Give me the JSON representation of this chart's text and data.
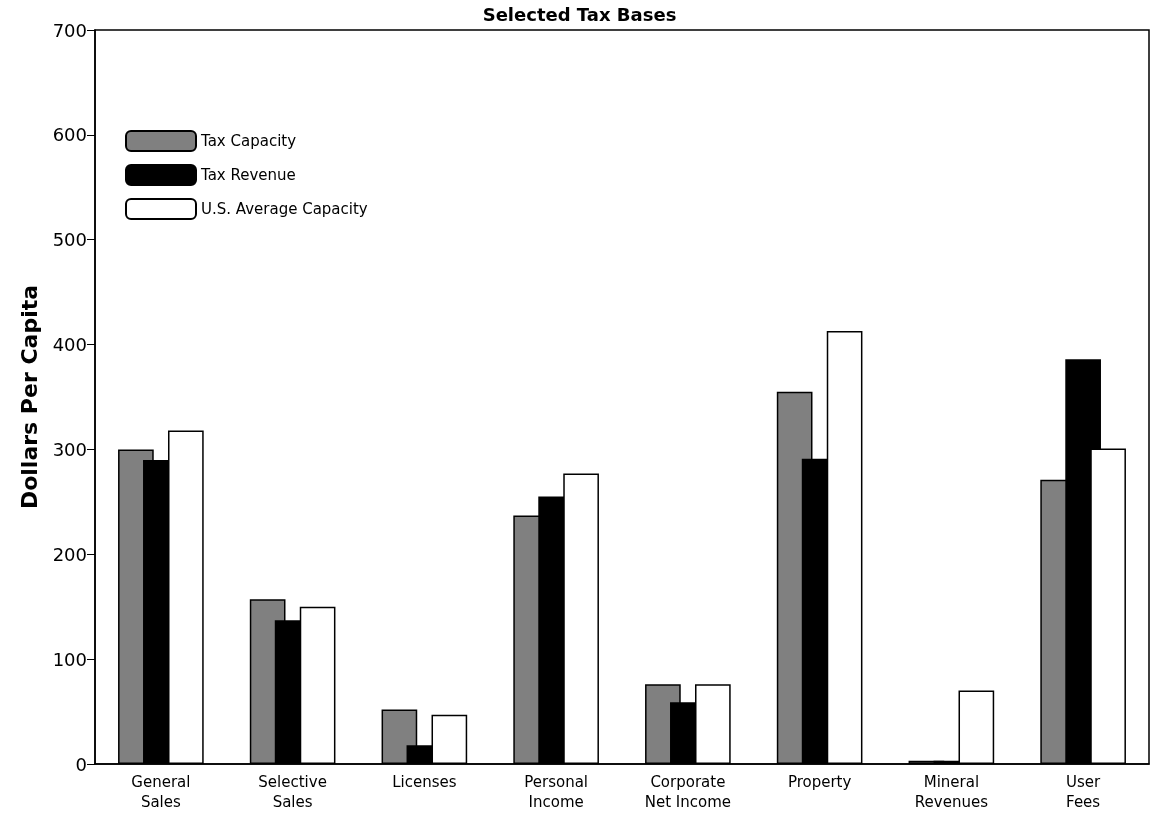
{
  "chart_data": {
    "type": "bar",
    "title": "Selected Tax Bases",
    "ylabel": "Dollars Per Capita",
    "categories": [
      "General\nSales",
      "Selective\nSales",
      "Licenses",
      "Personal\nIncome",
      "Corporate\nNet Income",
      "Property",
      "Mineral\nRevenues",
      "User\nFees"
    ],
    "series": [
      {
        "name": "Tax Capacity",
        "color": "#808080",
        "values": [
          300,
          157,
          52,
          237,
          76,
          355,
          3,
          271
        ]
      },
      {
        "name": "Tax Revenue",
        "color": "#000000",
        "values": [
          290,
          137,
          18,
          255,
          59,
          291,
          3,
          386
        ]
      },
      {
        "name": "U.S. Average Capacity",
        "color": "#ffffff",
        "values": [
          318,
          150,
          47,
          277,
          76,
          413,
          70,
          301
        ]
      }
    ],
    "ylim": [
      0,
      700
    ],
    "yticks": [
      0,
      100,
      200,
      300,
      400,
      500,
      600,
      700
    ],
    "grid": false,
    "legend": "top left"
  }
}
